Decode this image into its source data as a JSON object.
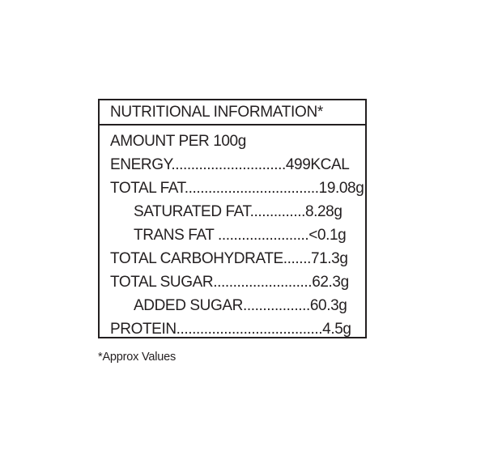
{
  "title": "NUTRITIONAL INFORMATION*",
  "rows": [
    {
      "text": "AMOUNT PER 100g"
    },
    {
      "text": "ENERGY.............................499KCAL"
    },
    {
      "text": "TOTAL FAT..................................19.08g"
    },
    {
      "text": "SATURATED FAT..............8.28g"
    },
    {
      "text": "TRANS FAT .......................<0.1g"
    },
    {
      "text": "TOTAL CARBOHYDRATE.......71.3g"
    },
    {
      "text": "TOTAL SUGAR.........................62.3g"
    },
    {
      "text": "ADDED SUGAR.................60.3g"
    },
    {
      "text": "PROTEIN.....................................4.5g"
    }
  ],
  "footnote": "*Approx Values"
}
